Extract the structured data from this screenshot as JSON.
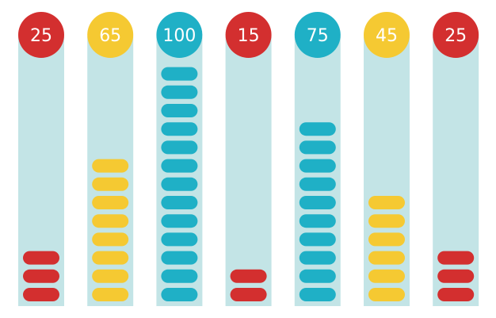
{
  "colors": {
    "red": "#d32f2f",
    "yellow": "#f5c932",
    "teal": "#1fb0c6",
    "track": "#c3e4e6"
  },
  "chart_data": {
    "type": "bar",
    "grid": false,
    "legend": "none",
    "ylim": [
      0,
      100
    ],
    "categories": [
      "",
      "",
      "",
      "",
      "",
      "",
      ""
    ],
    "values": [
      25,
      65,
      100,
      15,
      75,
      45,
      25
    ],
    "labels": [
      "25",
      "65",
      "100",
      "15",
      "75",
      "45",
      "25"
    ],
    "segment_counts": [
      3,
      8,
      13,
      2,
      10,
      6,
      3
    ],
    "bar_colors": [
      "red",
      "yellow",
      "teal",
      "red",
      "teal",
      "yellow",
      "red"
    ]
  }
}
